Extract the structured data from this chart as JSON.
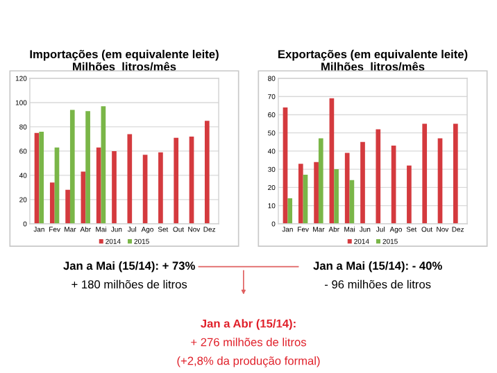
{
  "chart_data": [
    {
      "type": "bar",
      "title": "Importações (em equivalente leite)\nMilhões  litros/mês",
      "categories": [
        "Jan",
        "Fev",
        "Mar",
        "Abr",
        "Mai",
        "Jun",
        "Jul",
        "Ago",
        "Set",
        "Out",
        "Nov",
        "Dez"
      ],
      "series": [
        {
          "name": "2014",
          "color": "#d43a3e",
          "values": [
            75,
            34,
            28,
            43,
            63,
            60,
            74,
            57,
            59,
            71,
            72,
            85
          ]
        },
        {
          "name": "2015",
          "color": "#7ab648",
          "values": [
            76,
            63,
            94,
            93,
            97,
            null,
            null,
            null,
            null,
            null,
            null,
            null
          ]
        }
      ],
      "ylim": [
        0,
        120
      ],
      "yticks": [
        0,
        20,
        40,
        60,
        80,
        100,
        120
      ],
      "grid": "y",
      "legend": "bottom",
      "annotations": [
        "Jan a Mai (15/14): + 73%",
        "+ 180 milhões de litros"
      ]
    },
    {
      "type": "bar",
      "title": "Exportações (em equivalente leite)\nMilhões  litros/mês",
      "categories": [
        "Jan",
        "Fev",
        "Mar",
        "Abr",
        "Mai",
        "Jun",
        "Jul",
        "Ago",
        "Set",
        "Out",
        "Nov",
        "Dez"
      ],
      "series": [
        {
          "name": "2014",
          "color": "#d43a3e",
          "values": [
            64,
            33,
            34,
            69,
            39,
            45,
            52,
            43,
            32,
            55,
            47,
            55
          ]
        },
        {
          "name": "2015",
          "color": "#7ab648",
          "values": [
            14,
            27,
            47,
            30,
            24,
            null,
            null,
            null,
            null,
            null,
            null,
            null
          ]
        }
      ],
      "ylim": [
        0,
        80
      ],
      "yticks": [
        0,
        10,
        20,
        30,
        40,
        50,
        60,
        70,
        80
      ],
      "grid": "y",
      "legend": "bottom",
      "annotations": [
        "Jan a Mai (15/14): - 40%",
        "- 96 milhões de litros"
      ]
    },
    {
      "type": "other",
      "annotations": [
        "Jan a Abr (15/14):",
        "+ 276 milhões de litros",
        "(+2,8% da produção formal)"
      ]
    }
  ]
}
